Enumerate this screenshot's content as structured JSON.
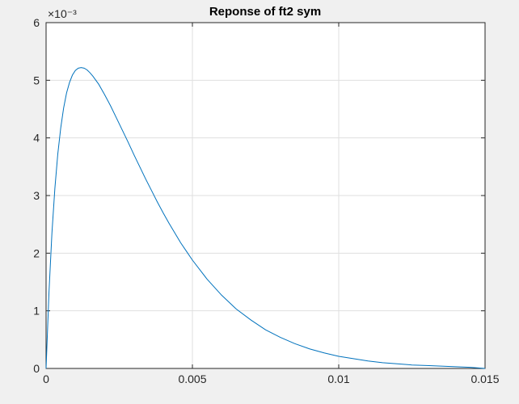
{
  "chart_data": {
    "type": "line",
    "title": "Reponse of ft2 sym",
    "xlabel": "",
    "ylabel": "",
    "xlim": [
      0,
      0.015
    ],
    "ylim": [
      0,
      6
    ],
    "y_scale_exponent": "×10⁻³",
    "x_ticks": [
      0,
      0.005,
      0.01,
      0.015
    ],
    "x_tick_labels": [
      "0",
      "0.005",
      "0.01",
      "0.015"
    ],
    "y_ticks": [
      0,
      1,
      2,
      3,
      4,
      5,
      6
    ],
    "y_tick_labels": [
      "0",
      "1",
      "2",
      "3",
      "4",
      "5",
      "6"
    ],
    "grid": true,
    "legend": "none",
    "series": [
      {
        "color": "#0072bd",
        "x": [
          0,
          0.0001,
          0.0002,
          0.0003,
          0.0004,
          0.0005,
          0.0006,
          0.0007,
          0.0008,
          0.0009,
          0.001,
          0.0011,
          0.0012,
          0.0013,
          0.0014,
          0.0015,
          0.0016,
          0.0017,
          0.0018,
          0.0019,
          0.002,
          0.0022,
          0.0024,
          0.0026,
          0.0028,
          0.003,
          0.0032,
          0.0034,
          0.0036,
          0.0038,
          0.004,
          0.0042,
          0.0044,
          0.0046,
          0.0048,
          0.005,
          0.0055,
          0.006,
          0.0065,
          0.007,
          0.0075,
          0.008,
          0.0085,
          0.009,
          0.0095,
          0.01,
          0.0105,
          0.011,
          0.0115,
          0.012,
          0.0125,
          0.013,
          0.0135,
          0.014,
          0.0145,
          0.015
        ],
        "y": [
          0,
          1.33,
          2.35,
          3.12,
          3.72,
          4.17,
          4.52,
          4.78,
          4.96,
          5.09,
          5.17,
          5.21,
          5.22,
          5.21,
          5.18,
          5.13,
          5.07,
          5.0,
          4.93,
          4.84,
          4.75,
          4.56,
          4.35,
          4.14,
          3.93,
          3.71,
          3.5,
          3.29,
          3.09,
          2.89,
          2.7,
          2.52,
          2.35,
          2.18,
          2.03,
          1.88,
          1.55,
          1.27,
          1.03,
          0.84,
          0.67,
          0.54,
          0.43,
          0.34,
          0.27,
          0.21,
          0.17,
          0.13,
          0.1,
          0.08,
          0.06,
          0.05,
          0.04,
          0.03,
          0.02,
          0.0
        ]
      }
    ]
  }
}
